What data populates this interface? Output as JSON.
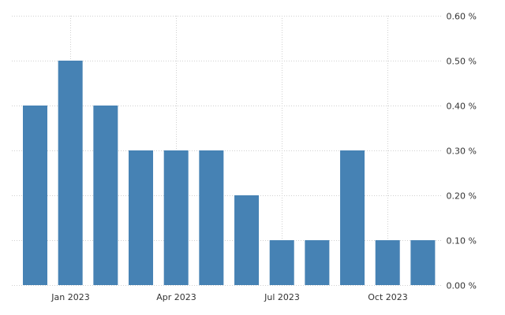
{
  "chart_data": {
    "type": "bar",
    "x": [
      "2022-12",
      "2023-01",
      "2023-02",
      "2023-03",
      "2023-04",
      "2023-05",
      "2023-06",
      "2023-07",
      "2023-08",
      "2023-09",
      "2023-10",
      "2023-11"
    ],
    "values": [
      0.4,
      0.5,
      0.4,
      0.3,
      0.3,
      0.3,
      0.2,
      0.1,
      0.1,
      0.3,
      0.1,
      0.1
    ],
    "x_ticks": [
      {
        "at": "2023-01",
        "label": "Jan 2023"
      },
      {
        "at": "2023-04",
        "label": "Apr 2023"
      },
      {
        "at": "2023-07",
        "label": "Jul 2023"
      },
      {
        "at": "2023-10",
        "label": "Oct 2023"
      }
    ],
    "y_ticks": [
      0.0,
      0.1,
      0.2,
      0.3,
      0.4,
      0.5,
      0.6
    ],
    "y_tick_labels": [
      "0.00 %",
      "0.10 %",
      "0.20 %",
      "0.30 %",
      "0.40 %",
      "0.50 %",
      "0.60 %"
    ],
    "ylim": [
      0,
      0.6
    ],
    "y_axis_side": "right",
    "grid": true,
    "bar_color": "#4682b4",
    "grid_color": "#d0d0d0",
    "title": "",
    "xlabel": "",
    "ylabel": ""
  }
}
